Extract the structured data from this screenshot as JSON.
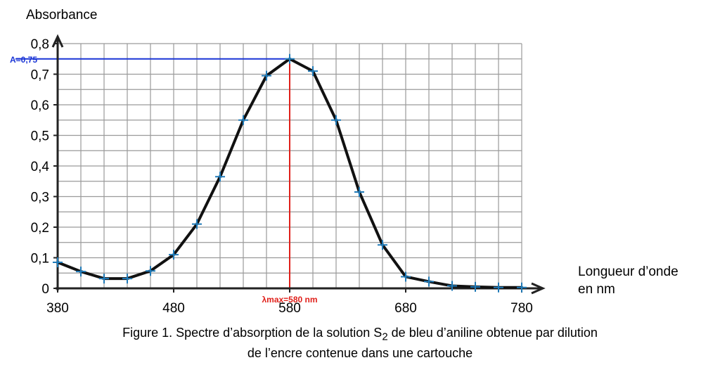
{
  "chart_data": {
    "type": "line",
    "ylabel": "Absorbance",
    "xlabel_lines": [
      "Longueur d’onde",
      "en nm"
    ],
    "xlim": [
      380,
      780
    ],
    "ylim": [
      0,
      0.8
    ],
    "x_ticks": [
      380,
      480,
      580,
      680,
      780
    ],
    "x_tick_labels": [
      "380",
      "480",
      "580",
      "680",
      "780"
    ],
    "y_ticks": [
      0,
      0.1,
      0.2,
      0.3,
      0.4,
      0.5,
      0.6,
      0.7,
      0.8
    ],
    "y_tick_labels": [
      "0",
      "0,1",
      "0,2",
      "0,3",
      "0,4",
      "0,5",
      "0,6",
      "0,7",
      "0,8"
    ],
    "grid": true,
    "x_grid_step": 20,
    "y_grid_step": 0.05,
    "series": [
      {
        "x": [
          380,
          400,
          420,
          440,
          460,
          480,
          500,
          520,
          540,
          560,
          580,
          600,
          620,
          640,
          660,
          680,
          700,
          720,
          740,
          760,
          780
        ],
        "y": [
          0.085,
          0.055,
          0.032,
          0.032,
          0.057,
          0.11,
          0.21,
          0.365,
          0.55,
          0.695,
          0.75,
          0.71,
          0.55,
          0.315,
          0.142,
          0.038,
          0.022,
          0.008,
          0.005,
          0.003,
          0.003
        ],
        "line_color": "#111111",
        "marker": "+",
        "marker_color": "#1f7ab8"
      }
    ],
    "annotations": {
      "amax": {
        "label": "A=0,75",
        "value": 0.75,
        "color": "#1a35d6"
      },
      "lambda_max": {
        "label": "λmax=580 nm",
        "value": 580,
        "color": "#e0201a"
      }
    }
  },
  "caption": {
    "line1_before": "Figure 1. Spectre d’absorption de la solution S",
    "line1_sub": "2",
    "line1_after": " de bleu d’aniline obtenue par dilution",
    "line2": "de l’encre contenue dans une cartouche"
  }
}
